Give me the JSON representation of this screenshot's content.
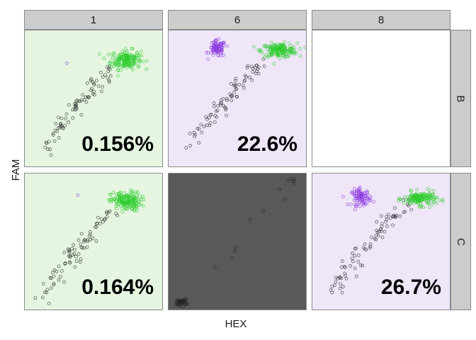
{
  "chart_data": {
    "type": "scatter",
    "xlabel": "HEX",
    "ylabel": "FAM",
    "column_strips": [
      "1",
      "6",
      "8"
    ],
    "row_strips": [
      "B",
      "C"
    ],
    "colors": {
      "low_bg": "#e5f5e0",
      "high_bg": "#efe6f8",
      "empty_bg": "#ffffff",
      "failed_bg": "#595959",
      "negative": "#222222",
      "hex_positive": "#2ecc2e",
      "fam_positive": "#8e3ce0"
    },
    "panels": [
      {
        "col": "1",
        "row": "B",
        "background": "low",
        "percent": "0.156%",
        "clusters": [
          {
            "population": "hex_positive",
            "count": 170,
            "cx": 0.73,
            "cy": 0.79,
            "sx": 0.055,
            "sy": 0.035
          },
          {
            "population": "fam_positive",
            "count": 1,
            "cx": 0.3,
            "cy": 0.77,
            "sx": 0.005,
            "sy": 0.005
          }
        ],
        "trail": {
          "count": 80,
          "from": [
            0.12,
            0.1
          ],
          "to": [
            0.62,
            0.72
          ]
        }
      },
      {
        "col": "6",
        "row": "B",
        "background": "high",
        "percent": "22.6%",
        "clusters": [
          {
            "population": "fam_positive",
            "count": 90,
            "cx": 0.35,
            "cy": 0.87,
            "sx": 0.03,
            "sy": 0.03
          },
          {
            "population": "hex_positive",
            "count": 170,
            "cx": 0.8,
            "cy": 0.86,
            "sx": 0.065,
            "sy": 0.025
          }
        ],
        "trail": {
          "count": 80,
          "from": [
            0.12,
            0.12
          ],
          "to": [
            0.7,
            0.8
          ]
        }
      },
      {
        "col": "8",
        "row": "B",
        "background": "empty",
        "percent": "",
        "clusters": [],
        "trail": null
      },
      {
        "col": "1",
        "row": "C",
        "background": "low",
        "percent": "0.164%",
        "clusters": [
          {
            "population": "hex_positive",
            "count": 170,
            "cx": 0.73,
            "cy": 0.8,
            "sx": 0.055,
            "sy": 0.035
          },
          {
            "population": "fam_positive",
            "count": 1,
            "cx": 0.38,
            "cy": 0.84,
            "sx": 0.005,
            "sy": 0.005
          }
        ],
        "trail": {
          "count": 80,
          "from": [
            0.1,
            0.08
          ],
          "to": [
            0.62,
            0.72
          ]
        }
      },
      {
        "col": "6",
        "row": "C",
        "background": "failed",
        "percent": "",
        "clusters": [
          {
            "population": "negative",
            "count": 40,
            "cx": 0.09,
            "cy": 0.06,
            "sx": 0.02,
            "sy": 0.012
          },
          {
            "population": "negative",
            "count": 5,
            "cx": 0.88,
            "cy": 0.95,
            "sx": 0.03,
            "sy": 0.01
          }
        ],
        "trail": {
          "count": 8,
          "from": [
            0.2,
            0.1
          ],
          "to": [
            0.9,
            0.95
          ]
        }
      },
      {
        "col": "8",
        "row": "C",
        "background": "high",
        "percent": "26.7%",
        "clusters": [
          {
            "population": "fam_positive",
            "count": 90,
            "cx": 0.35,
            "cy": 0.83,
            "sx": 0.035,
            "sy": 0.03
          },
          {
            "population": "hex_positive",
            "count": 160,
            "cx": 0.78,
            "cy": 0.82,
            "sx": 0.06,
            "sy": 0.025
          }
        ],
        "trail": {
          "count": 80,
          "from": [
            0.14,
            0.12
          ],
          "to": [
            0.68,
            0.78
          ]
        }
      }
    ]
  }
}
